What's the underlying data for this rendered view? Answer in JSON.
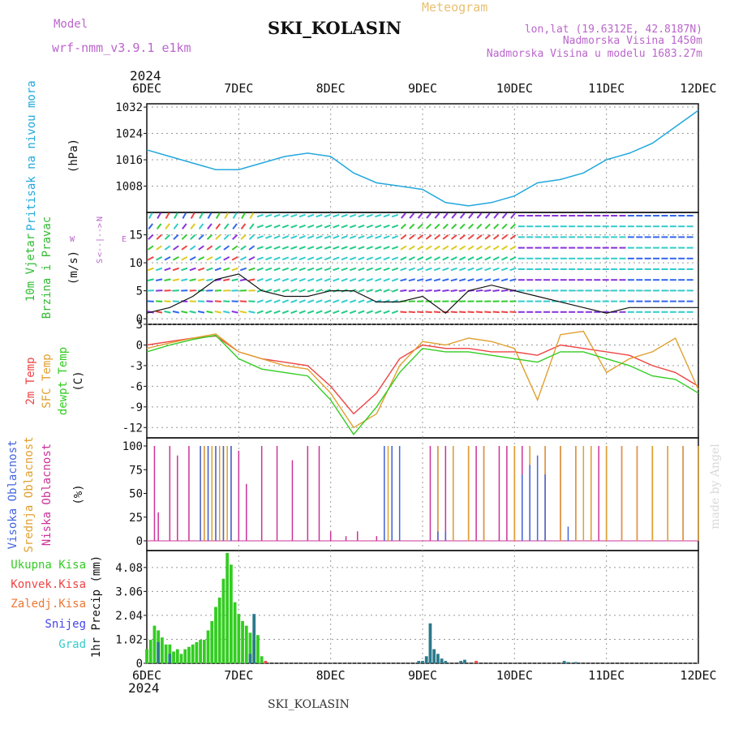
{
  "header": {
    "model_label": "Model",
    "model_name": "wrf-nmm_v3.9.1 e1km",
    "station": "SKI_KOLASIN",
    "meteogram": "Meteogram",
    "coords": "lon,lat (19.6312E, 42.8187N)",
    "altitude": "Nadmorska Visina 1450m",
    "model_altitude": "Nadmorska Visina u modelu 1683.27m",
    "year": "2024",
    "footer_station": "SKI_KOLASIN",
    "credit": "made by Angel"
  },
  "colors": {
    "pressure": "#22a8dd",
    "temp2m": "#ee4444",
    "sfc": "#e0a030",
    "dewpt": "#33cc22",
    "visoka": "#4466dd",
    "srednja": "#e0a030",
    "niska": "#cc3399",
    "ukupna": "#33cc22",
    "konvek": "#ee4444",
    "zaledj": "#ee7733",
    "snijeg": "#4444ee",
    "grad": "#33cccc",
    "wind_label": "#33bb33",
    "pressure_label": "#22a8dd",
    "compass": "#bb66cc"
  },
  "days": [
    "6DEC",
    "7DEC",
    "8DEC",
    "9DEC",
    "10DEC",
    "11DEC",
    "12DEC"
  ],
  "bottom_year": "2024",
  "panels": {
    "pressure": {
      "ylabel": "Pritisak na nivou mora",
      "unit": "(hPa)",
      "ticks": [
        "1032",
        "1024",
        "1016",
        "1008"
      ]
    },
    "wind": {
      "ylabel1": "10m Vjetar",
      "ylabel2": "Brzina i Pravac",
      "unit": "(m/s)",
      "ticks": [
        "15",
        "10",
        "5",
        "0"
      ],
      "compass": {
        "n": "N",
        "s": "S",
        "w": "W",
        "e": "E",
        "arrow": "<--|-->"
      }
    },
    "temp": {
      "labels": [
        "2m Temp",
        "SFC Temp",
        "dewpt Temp"
      ],
      "unit": "(C)",
      "ticks": [
        "3",
        "0",
        "-3",
        "-6",
        "-9",
        "-12"
      ]
    },
    "cloud": {
      "labels": [
        "Visoka Oblacnost",
        "Srednja Oblacnost",
        "Niska Oblacnost"
      ],
      "unit": "(%)",
      "ticks": [
        "100",
        "75",
        "50",
        "25",
        "0"
      ]
    },
    "precip": {
      "legend": [
        "Ukupna Kisa",
        "Konvek.Kisa",
        "Zaledj.Kisa",
        "Snijeg",
        "Grad"
      ],
      "unit": "1hr Precip (mm)",
      "ticks": [
        "4.08",
        "3.06",
        "2.04",
        "1.02",
        "0"
      ]
    }
  },
  "chart_data": [
    {
      "type": "line",
      "title": "Pritisak na nivou mora",
      "ylabel": "(hPa)",
      "x_unit": "hours from 6DEC 00:00",
      "ylim": [
        1000,
        1033
      ],
      "series": [
        {
          "name": "Pritisak na nivou mora",
          "x": [
            0,
            6,
            12,
            18,
            24,
            30,
            36,
            42,
            48,
            54,
            60,
            66,
            72,
            78,
            84,
            90,
            96,
            102,
            108,
            114,
            120,
            126,
            132,
            138,
            144
          ],
          "values": [
            1019,
            1017,
            1015,
            1013,
            1013,
            1015,
            1017,
            1018,
            1017,
            1012,
            1009,
            1008,
            1007,
            1003,
            1002,
            1003,
            1005,
            1009,
            1010,
            1012,
            1016,
            1018,
            1021,
            1026,
            1031
          ]
        }
      ]
    },
    {
      "type": "line",
      "title": "10m Vjetar Brzina i Pravac",
      "ylabel": "(m/s)",
      "x_unit": "hours from 6DEC 00:00",
      "ylim": [
        -1,
        19
      ],
      "series": [
        {
          "x": [
            0,
            6,
            12,
            18,
            24,
            30,
            36,
            42,
            48,
            54,
            60,
            66,
            72,
            78,
            84,
            90,
            96,
            102,
            108,
            114,
            120,
            126,
            132,
            138,
            144
          ],
          "values": [
            1,
            2,
            4,
            7,
            8,
            5,
            4,
            4,
            5,
            5,
            3,
            3,
            4,
            1,
            5,
            6,
            5,
            4,
            3,
            2,
            1,
            2,
            2,
            2,
            2
          ]
        }
      ]
    },
    {
      "type": "line",
      "title": "Temp",
      "ylabel": "(C)",
      "x_unit": "hours from 6DEC 00:00",
      "ylim": [
        -13.5,
        3
      ],
      "series": [
        {
          "name": "2m Temp",
          "x": [
            0,
            6,
            12,
            18,
            24,
            30,
            36,
            42,
            48,
            54,
            60,
            66,
            72,
            78,
            84,
            90,
            96,
            102,
            108,
            114,
            120,
            126,
            132,
            138,
            144
          ],
          "values": [
            0,
            0.5,
            1,
            1.3,
            -1,
            -2,
            -2.5,
            -3,
            -6,
            -10,
            -7,
            -2,
            0,
            -0.5,
            -0.5,
            -1,
            -1,
            -1.5,
            0,
            -0.5,
            -1,
            -1.5,
            -3,
            -4,
            -6
          ]
        },
        {
          "name": "SFC Temp",
          "x": [
            0,
            6,
            12,
            18,
            24,
            30,
            36,
            42,
            48,
            54,
            60,
            66,
            72,
            78,
            84,
            90,
            96,
            102,
            108,
            114,
            120,
            126,
            132,
            138,
            144
          ],
          "values": [
            -0.5,
            0.3,
            1,
            1.6,
            -1,
            -2,
            -3,
            -3.5,
            -7,
            -12,
            -10,
            -3,
            0.5,
            0,
            1,
            0.5,
            -0.5,
            -8,
            1.5,
            2,
            -4,
            -2,
            -1,
            1,
            -6.5
          ]
        },
        {
          "name": "dewpt Temp",
          "x": [
            0,
            6,
            12,
            18,
            24,
            30,
            36,
            42,
            48,
            54,
            60,
            66,
            72,
            78,
            84,
            90,
            96,
            102,
            108,
            114,
            120,
            126,
            132,
            138,
            144
          ],
          "values": [
            -1,
            0,
            0.8,
            1.4,
            -2,
            -3.5,
            -4,
            -4.5,
            -8,
            -13,
            -9,
            -4,
            -0.5,
            -1,
            -1,
            -1.5,
            -2,
            -2.5,
            -1,
            -1,
            -2,
            -3,
            -4.5,
            -5,
            -7
          ]
        }
      ]
    },
    {
      "type": "bar",
      "title": "Oblacnost",
      "ylabel": "(%)",
      "x_unit": "hours from 6DEC 00:00",
      "ylim": [
        0,
        100
      ],
      "series": [
        {
          "name": "Niska Oblacnost",
          "x": [
            2,
            3,
            6,
            8,
            11,
            15,
            22,
            24,
            26,
            30,
            34,
            38,
            42,
            45,
            48,
            52,
            55,
            60,
            62,
            64,
            74,
            76,
            78,
            80,
            84,
            86,
            88,
            92,
            94,
            96,
            98,
            100,
            104,
            108,
            112,
            116,
            118,
            120,
            124,
            128,
            132,
            136,
            140
          ],
          "values": [
            100,
            30,
            100,
            90,
            100,
            100,
            100,
            95,
            60,
            100,
            100,
            85,
            100,
            100,
            10,
            5,
            10,
            5,
            100,
            100,
            100,
            100,
            100,
            100,
            100,
            100,
            100,
            100,
            100,
            100,
            100,
            100,
            100,
            100,
            100,
            100,
            100,
            100,
            100,
            100,
            100,
            100,
            100
          ]
        },
        {
          "name": "Srednja Oblacnost",
          "x": [
            14,
            15,
            16,
            17,
            18,
            19,
            20,
            21,
            22,
            62,
            63,
            64,
            76,
            80,
            84,
            88,
            96,
            100,
            104,
            108,
            112,
            114,
            116,
            120,
            124,
            128,
            132,
            136,
            140,
            144
          ],
          "values": [
            100,
            100,
            100,
            100,
            100,
            100,
            100,
            100,
            100,
            100,
            100,
            100,
            100,
            100,
            100,
            100,
            100,
            100,
            100,
            100,
            100,
            100,
            100,
            100,
            100,
            100,
            100,
            100,
            100,
            100
          ]
        },
        {
          "name": "Visoka Oblacnost",
          "x": [
            14,
            16,
            18,
            20,
            22,
            62,
            64,
            66,
            76,
            78,
            98,
            100,
            102,
            104,
            110
          ],
          "values": [
            100,
            100,
            100,
            100,
            100,
            100,
            100,
            100,
            10,
            10,
            70,
            80,
            90,
            70,
            15
          ]
        }
      ]
    },
    {
      "type": "bar",
      "title": "1hr Precip",
      "ylabel": "1hr Precip (mm)",
      "x_unit": "hours from 6DEC 00:00",
      "ylim": [
        0,
        4.8
      ],
      "series": [
        {
          "name": "Ukupna Kisa",
          "x": [
            0,
            1,
            2,
            3,
            4,
            5,
            6,
            7,
            8,
            9,
            10,
            11,
            12,
            13,
            14,
            15,
            16,
            17,
            18,
            19,
            20,
            21,
            22,
            23,
            24,
            25,
            26,
            27,
            28,
            29,
            30
          ],
          "values": [
            0.6,
            1.0,
            1.6,
            1.4,
            1.1,
            0.8,
            0.8,
            0.5,
            0.6,
            0.4,
            0.6,
            0.7,
            0.8,
            0.9,
            1.0,
            1.0,
            1.4,
            1.8,
            2.4,
            2.8,
            3.6,
            4.7,
            4.2,
            2.6,
            2.1,
            1.8,
            1.6,
            1.3,
            1.0,
            1.2,
            0.3
          ]
        },
        {
          "name": "Konvek.Kisa",
          "x": [
            31,
            86
          ],
          "values": [
            0.1,
            0.1
          ]
        },
        {
          "name": "Zaledj.Kisa",
          "x": [],
          "values": []
        },
        {
          "name": "Snijeg",
          "x": [
            3,
            6,
            27,
            28,
            71,
            72,
            73,
            74,
            75,
            76,
            77,
            78,
            82,
            83,
            109,
            110,
            112
          ],
          "values": [
            0.9,
            0.4,
            0.4,
            2.1,
            0.1,
            0.1,
            0.3,
            1.7,
            0.6,
            0.4,
            0.2,
            0.1,
            0.1,
            0.15,
            0.1,
            0.05,
            0.05
          ]
        },
        {
          "name": "Grad",
          "x": [],
          "values": []
        }
      ]
    }
  ]
}
